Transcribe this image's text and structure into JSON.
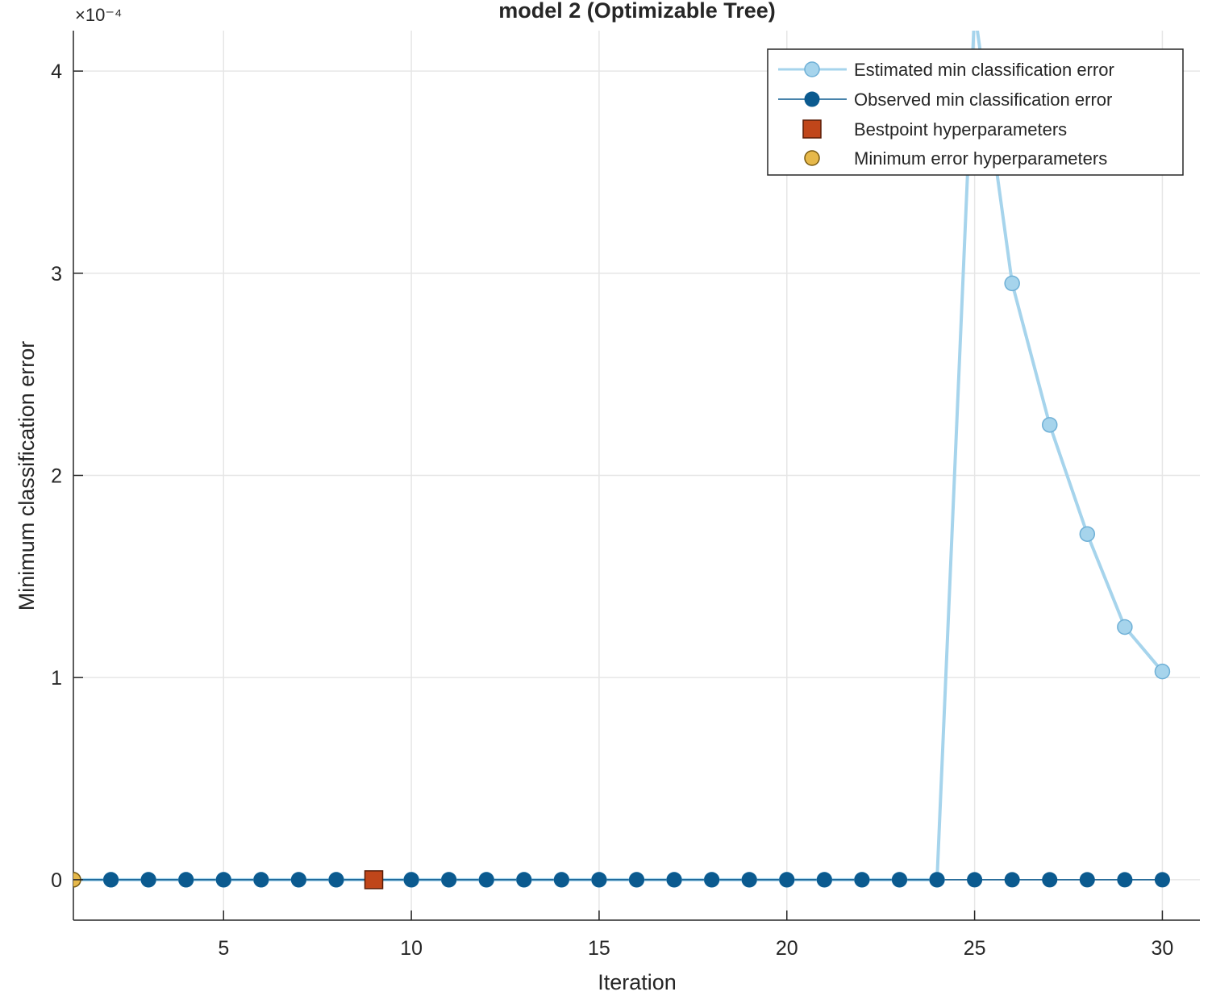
{
  "chart_data": {
    "type": "line",
    "title": "model 2 (Optimizable Tree)",
    "xlabel": "Iteration",
    "ylabel": "Minimum classification error",
    "y_exponent_label": "×10⁻⁴",
    "xlim": [
      1,
      31
    ],
    "ylim": [
      -2e-05,
      0.00042
    ],
    "x_ticks": [
      5,
      10,
      15,
      20,
      25,
      30
    ],
    "x_tick_labels": [
      "5",
      "10",
      "15",
      "20",
      "25",
      "30"
    ],
    "y_ticks": [
      0,
      0.0001,
      0.0002,
      0.0003,
      0.0004
    ],
    "y_tick_labels": [
      "0",
      "1",
      "2",
      "3",
      "4"
    ],
    "grid": true,
    "legend_position": "top-right",
    "series": [
      {
        "name": "Estimated min classification error",
        "color": "#a6d4ec",
        "edge_color": "#6fb0d6",
        "marker": "circle",
        "x": [
          1,
          2,
          3,
          4,
          5,
          6,
          7,
          8,
          9,
          10,
          11,
          12,
          13,
          14,
          15,
          16,
          17,
          18,
          19,
          20,
          21,
          22,
          23,
          24,
          25,
          26,
          27,
          28,
          29,
          30
        ],
        "y": [
          0,
          0,
          0,
          0,
          0,
          0,
          0,
          0,
          0,
          0,
          0,
          0,
          0,
          0,
          0,
          0,
          0,
          0,
          0,
          0,
          0,
          0,
          0,
          0,
          0.00043,
          0.000295,
          0.000225,
          0.000171,
          0.000125,
          0.000103
        ]
      },
      {
        "name": "Observed min classification error",
        "color": "#0b5a8f",
        "edge_color": "#0b5a8f",
        "marker": "circle",
        "x": [
          1,
          2,
          3,
          4,
          5,
          6,
          7,
          8,
          9,
          10,
          11,
          12,
          13,
          14,
          15,
          16,
          17,
          18,
          19,
          20,
          21,
          22,
          23,
          24,
          25,
          26,
          27,
          28,
          29,
          30
        ],
        "y": [
          0,
          0,
          0,
          0,
          0,
          0,
          0,
          0,
          0,
          0,
          0,
          0,
          0,
          0,
          0,
          0,
          0,
          0,
          0,
          0,
          0,
          0,
          0,
          0,
          0,
          0,
          0,
          0,
          0,
          0
        ]
      },
      {
        "name": "Bestpoint hyperparameters",
        "color": "#c0461a",
        "marker": "square",
        "x": [
          9
        ],
        "y": [
          0
        ]
      },
      {
        "name": "Minimum error hyperparameters",
        "color": "#e6b84a",
        "marker": "circle",
        "x": [
          1
        ],
        "y": [
          0
        ]
      }
    ]
  }
}
